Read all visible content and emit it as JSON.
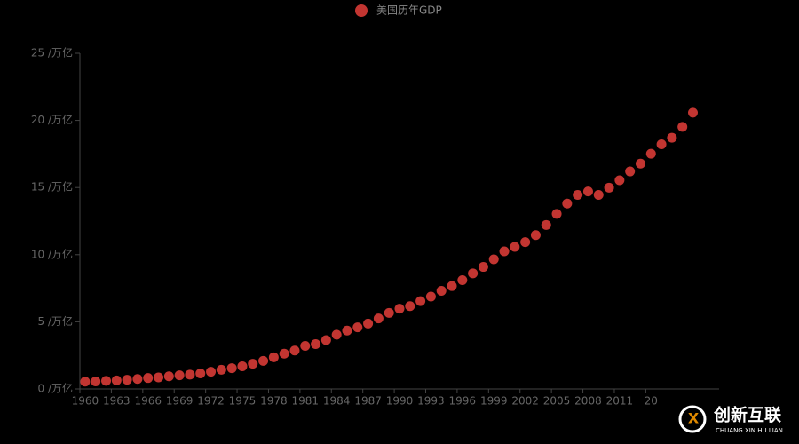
{
  "chart_data": {
    "type": "scatter",
    "series": [
      {
        "name": "美国历年GDP",
        "color": "#c23531",
        "values": [
          0.543,
          0.563,
          0.605,
          0.638,
          0.686,
          0.744,
          0.815,
          0.862,
          0.943,
          1.02,
          1.07,
          1.16,
          1.28,
          1.43,
          1.55,
          1.69,
          1.88,
          2.09,
          2.36,
          2.63,
          2.86,
          3.21,
          3.34,
          3.64,
          4.04,
          4.35,
          4.59,
          4.87,
          5.25,
          5.66,
          5.98,
          6.17,
          6.54,
          6.88,
          7.31,
          7.66,
          8.1,
          8.61,
          9.09,
          9.66,
          10.25,
          10.58,
          10.94,
          11.46,
          12.21,
          13.04,
          13.81,
          14.45,
          14.71,
          14.45,
          14.99,
          15.54,
          16.2,
          16.78,
          17.52,
          18.22,
          18.71,
          19.52,
          20.58
        ]
      }
    ],
    "categories": [
      "1960",
      null,
      null,
      "1963",
      null,
      null,
      "1966",
      null,
      null,
      "1969",
      null,
      null,
      "1972",
      null,
      null,
      "1975",
      null,
      null,
      "1978",
      null,
      null,
      "1981",
      null,
      null,
      "1984",
      null,
      null,
      "1987",
      null,
      null,
      "1990",
      null,
      null,
      "1993",
      null,
      null,
      "1996",
      null,
      null,
      "1999",
      null,
      null,
      "2002",
      null,
      null,
      "2005",
      null,
      null,
      "2008",
      null,
      null,
      "2011",
      null,
      null,
      "20",
      null,
      null,
      null,
      null,
      null,
      null
    ],
    "ylim": [
      0,
      25
    ],
    "yticks": [
      {
        "value": 0,
        "label": "0 /万亿"
      },
      {
        "value": 5,
        "label": "5 /万亿"
      },
      {
        "value": 10,
        "label": "10 /万亿"
      },
      {
        "value": 15,
        "label": "15 /万亿"
      },
      {
        "value": 20,
        "label": "20 /万亿"
      },
      {
        "value": 25,
        "label": "25 /万亿"
      }
    ],
    "grid": false
  },
  "watermark": {
    "title": "创新互联",
    "subtitle": "CHUANG XIN HU LIAN"
  }
}
